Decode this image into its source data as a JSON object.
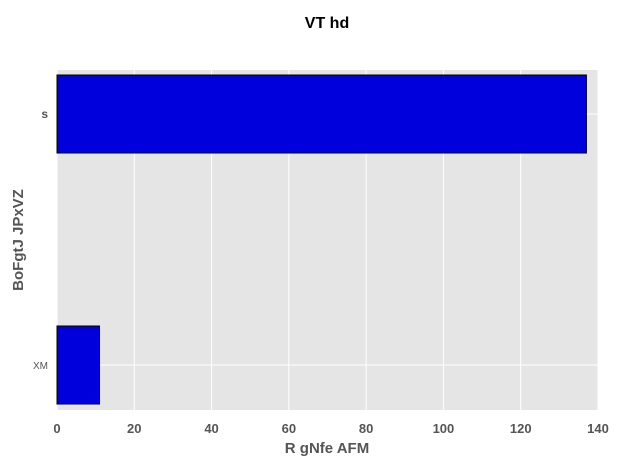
{
  "chart_data": {
    "type": "bar",
    "orientation": "horizontal",
    "title": "VT hd",
    "xlabel": "R gNfe AFM",
    "ylabel": "BoFgtJ JPxVZ",
    "categories": [
      "XM",
      "s"
    ],
    "values": [
      11,
      137
    ],
    "xlim": [
      0,
      140
    ],
    "xticks": [
      0,
      20,
      40,
      60,
      80,
      100,
      120,
      140
    ],
    "grid": true,
    "colors": {
      "bar": "#0000dd",
      "bar_edge": "#000000",
      "plot_background": "#e5e5e5",
      "grid": "#ffffff"
    }
  }
}
